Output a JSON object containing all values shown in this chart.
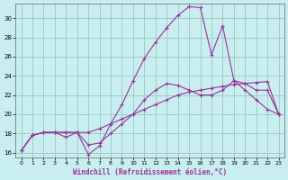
{
  "xlabel": "Windchill (Refroidissement éolien,°C)",
  "background_color": "#c8eef0",
  "grid_color": "#a0ccc8",
  "line_color": "#993399",
  "xlim": [
    -0.5,
    23.5
  ],
  "ylim": [
    15.5,
    31.5
  ],
  "yticks": [
    16,
    18,
    20,
    22,
    24,
    26,
    28,
    30
  ],
  "xticks": [
    0,
    1,
    2,
    3,
    4,
    5,
    6,
    7,
    8,
    9,
    10,
    11,
    12,
    13,
    14,
    15,
    16,
    17,
    18,
    19,
    20,
    21,
    22,
    23
  ],
  "series1_x": [
    0,
    1,
    2,
    3,
    4,
    5,
    6,
    7,
    8,
    9,
    10,
    11,
    12,
    13,
    14,
    15,
    16,
    17,
    18,
    19,
    20,
    21,
    22,
    23
  ],
  "series1_y": [
    16.2,
    17.8,
    18.1,
    18.1,
    18.1,
    18.1,
    18.1,
    18.5,
    19.0,
    19.5,
    20.0,
    20.5,
    21.0,
    21.5,
    22.0,
    22.3,
    22.5,
    22.7,
    22.9,
    23.1,
    23.2,
    23.3,
    23.4,
    20.0
  ],
  "series2_x": [
    0,
    1,
    2,
    3,
    4,
    5,
    6,
    7,
    8,
    9,
    10,
    11,
    12,
    13,
    14,
    15,
    16,
    17,
    18,
    19,
    20,
    21,
    22,
    23
  ],
  "series2_y": [
    16.2,
    17.8,
    18.1,
    18.1,
    18.1,
    18.1,
    16.8,
    17.0,
    18.0,
    19.0,
    20.0,
    21.5,
    22.5,
    23.2,
    23.0,
    22.5,
    22.0,
    22.0,
    22.5,
    23.5,
    22.5,
    21.5,
    20.5,
    20.0
  ],
  "series3_x": [
    0,
    1,
    2,
    3,
    4,
    5,
    6,
    7,
    8,
    9,
    10,
    11,
    12,
    13,
    14,
    15,
    16,
    17,
    18,
    19,
    20,
    21,
    22,
    23
  ],
  "series3_y": [
    16.2,
    17.8,
    18.1,
    18.1,
    17.6,
    18.1,
    15.8,
    16.7,
    19.0,
    21.0,
    23.5,
    25.8,
    27.5,
    29.0,
    30.3,
    31.2,
    31.1,
    26.2,
    29.2,
    23.5,
    23.2,
    22.5,
    22.5,
    20.0
  ]
}
